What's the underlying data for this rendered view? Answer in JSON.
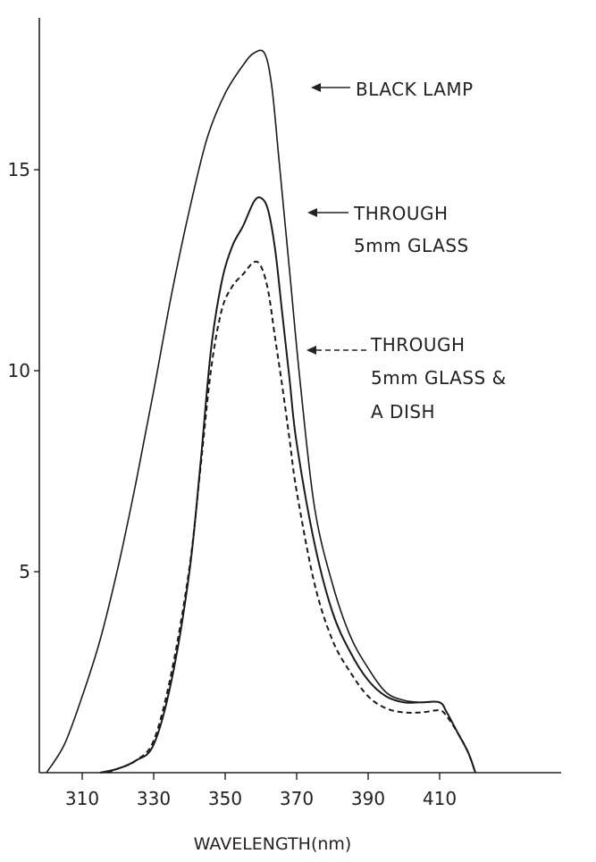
{
  "chart_data": {
    "type": "line",
    "title": "",
    "xlabel": "WAVELENGTH(nm)",
    "ylabel": "",
    "xlim": [
      298,
      426
    ],
    "ylim": [
      0,
      18.5
    ],
    "x_ticks": [
      310,
      330,
      350,
      370,
      390,
      410
    ],
    "y_ticks": [
      5,
      10,
      15
    ],
    "grid": false,
    "legend": "none",
    "series": [
      {
        "name": "BLACK LAMP",
        "style": "solid",
        "points": [
          [
            300,
            0
          ],
          [
            305,
            0.7
          ],
          [
            310,
            1.9
          ],
          [
            315,
            3.3
          ],
          [
            320,
            5.1
          ],
          [
            325,
            7.2
          ],
          [
            330,
            9.5
          ],
          [
            335,
            11.9
          ],
          [
            340,
            14.0
          ],
          [
            345,
            15.8
          ],
          [
            350,
            16.9
          ],
          [
            355,
            17.6
          ],
          [
            358,
            17.9
          ],
          [
            361,
            17.9
          ],
          [
            363,
            17.1
          ],
          [
            365,
            15.3
          ],
          [
            368,
            12.5
          ],
          [
            371,
            9.7
          ],
          [
            375,
            6.6
          ],
          [
            380,
            4.7
          ],
          [
            385,
            3.4
          ],
          [
            390,
            2.6
          ],
          [
            395,
            2.0
          ],
          [
            400,
            1.8
          ],
          [
            405,
            1.75
          ],
          [
            410,
            1.75
          ],
          [
            412,
            1.5
          ],
          [
            415,
            1.0
          ],
          [
            418,
            0.5
          ],
          [
            420,
            0
          ]
        ]
      },
      {
        "name": "THROUGH 5mm GLASS",
        "style": "solid",
        "points": [
          [
            315,
            0
          ],
          [
            320,
            0.1
          ],
          [
            325,
            0.3
          ],
          [
            330,
            0.7
          ],
          [
            335,
            2.3
          ],
          [
            340,
            5.0
          ],
          [
            343,
            7.6
          ],
          [
            346,
            10.5
          ],
          [
            349,
            12.2
          ],
          [
            352,
            13.1
          ],
          [
            355,
            13.6
          ],
          [
            358,
            14.2
          ],
          [
            360,
            14.3
          ],
          [
            362,
            14.0
          ],
          [
            364,
            13.0
          ],
          [
            366,
            11.4
          ],
          [
            368,
            9.8
          ],
          [
            370,
            8.2
          ],
          [
            375,
            5.7
          ],
          [
            380,
            4.0
          ],
          [
            385,
            3.0
          ],
          [
            390,
            2.3
          ],
          [
            395,
            1.9
          ],
          [
            400,
            1.75
          ],
          [
            405,
            1.75
          ],
          [
            410,
            1.75
          ],
          [
            412,
            1.5
          ],
          [
            415,
            1.0
          ],
          [
            418,
            0.5
          ],
          [
            420,
            0
          ]
        ]
      },
      {
        "name": "THROUGH 5mm GLASS & A DISH",
        "style": "dashed",
        "points": [
          [
            317,
            0
          ],
          [
            320,
            0.1
          ],
          [
            325,
            0.3
          ],
          [
            330,
            0.8
          ],
          [
            335,
            2.5
          ],
          [
            340,
            5.1
          ],
          [
            343,
            7.5
          ],
          [
            346,
            10.0
          ],
          [
            349,
            11.5
          ],
          [
            352,
            12.1
          ],
          [
            355,
            12.4
          ],
          [
            358,
            12.7
          ],
          [
            360,
            12.6
          ],
          [
            362,
            12.0
          ],
          [
            364,
            10.8
          ],
          [
            366,
            9.6
          ],
          [
            368,
            8.3
          ],
          [
            370,
            7.0
          ],
          [
            375,
            4.7
          ],
          [
            380,
            3.3
          ],
          [
            385,
            2.5
          ],
          [
            390,
            1.9
          ],
          [
            395,
            1.6
          ],
          [
            400,
            1.5
          ],
          [
            405,
            1.5
          ],
          [
            410,
            1.55
          ],
          [
            412,
            1.4
          ],
          [
            415,
            1.0
          ],
          [
            418,
            0.5
          ],
          [
            420,
            0
          ]
        ]
      }
    ],
    "annotations": [
      {
        "target": "BLACK LAMP",
        "lines": [
          "BLACK LAMP"
        ]
      },
      {
        "target": "THROUGH 5mm GLASS",
        "lines": [
          "THROUGH",
          "5mm GLASS"
        ]
      },
      {
        "target": "THROUGH 5mm GLASS & A DISH",
        "lines": [
          "THROUGH",
          "5mm GLASS &",
          "A DISH"
        ]
      }
    ]
  }
}
